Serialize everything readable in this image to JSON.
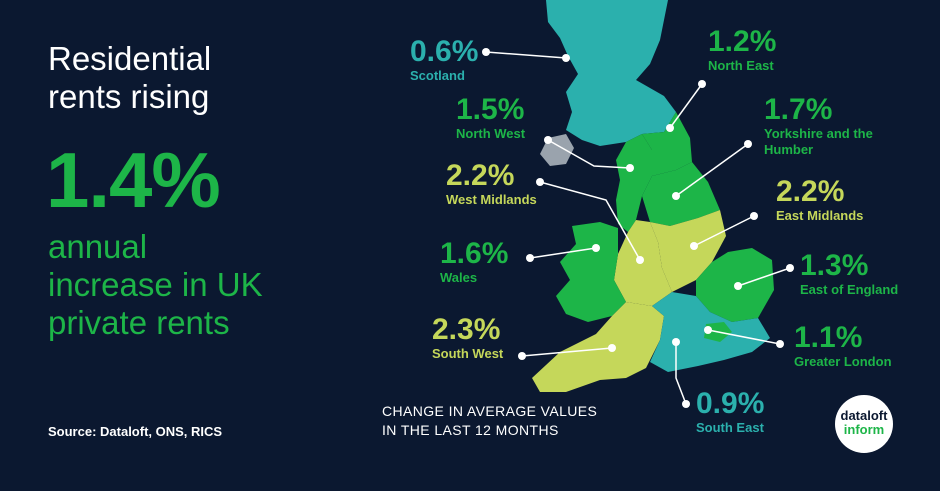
{
  "headline": [
    "Residential",
    "rents rising"
  ],
  "big_stat": "1.4%",
  "subtext": [
    "annual",
    "increase in UK",
    "private rents"
  ],
  "source": "Source:  Dataloft, ONS, RICS",
  "caption": [
    "CHANGE IN AVERAGE VALUES",
    "IN THE LAST 12 MONTHS"
  ],
  "logo": {
    "line1": "dataloft",
    "line2": "inform"
  },
  "colors": {
    "background": "#0b1830",
    "teal": "#2bb0ad",
    "green": "#1db548",
    "lime": "#c5d75a",
    "white": "#ffffff"
  },
  "regions": [
    {
      "name": "Scotland",
      "value": "0.6%",
      "color": "teal"
    },
    {
      "name": "North East",
      "value": "1.2%",
      "color": "green"
    },
    {
      "name": "North West",
      "value": "1.5%",
      "color": "green"
    },
    {
      "name": "Yorkshire and the Humber",
      "value": "1.7%",
      "color": "green"
    },
    {
      "name": "West Midlands",
      "value": "2.2%",
      "color": "lime"
    },
    {
      "name": "East Midlands",
      "value": "2.2%",
      "color": "lime"
    },
    {
      "name": "Wales",
      "value": "1.6%",
      "color": "green"
    },
    {
      "name": "East of England",
      "value": "1.3%",
      "color": "green"
    },
    {
      "name": "South West",
      "value": "2.3%",
      "color": "lime"
    },
    {
      "name": "Greater London",
      "value": "1.1%",
      "color": "green"
    },
    {
      "name": "South East",
      "value": "0.9%",
      "color": "teal"
    }
  ]
}
